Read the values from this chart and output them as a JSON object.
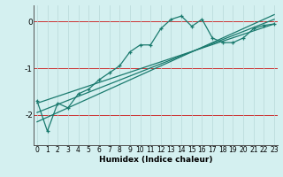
{
  "xlabel": "Humidex (Indice chaleur)",
  "bg_color": "#d4f0f0",
  "line_color": "#1a7a6e",
  "grid_color": "#b8d8d8",
  "red_line_color": "#cc3333",
  "x_data": [
    0,
    1,
    2,
    3,
    4,
    5,
    6,
    7,
    8,
    9,
    10,
    11,
    12,
    13,
    14,
    15,
    16,
    17,
    18,
    19,
    20,
    21,
    22,
    23
  ],
  "y_main": [
    -1.7,
    -2.35,
    -1.75,
    -1.85,
    -1.55,
    -1.45,
    -1.25,
    -1.1,
    -0.95,
    -0.65,
    -0.5,
    -0.5,
    -0.15,
    0.05,
    0.12,
    -0.1,
    0.05,
    -0.35,
    -0.45,
    -0.45,
    -0.35,
    -0.15,
    -0.08,
    -0.05
  ],
  "line1_x": [
    0,
    23
  ],
  "line1_y": [
    -1.75,
    -0.05
  ],
  "line2_x": [
    0,
    23
  ],
  "line2_y": [
    -1.95,
    0.05
  ],
  "line3_x": [
    0,
    23
  ],
  "line3_y": [
    -2.15,
    0.15
  ],
  "ylim": [
    -2.65,
    0.35
  ],
  "xlim": [
    -0.3,
    23.3
  ],
  "yticks": [
    0,
    -1,
    -2
  ],
  "xticks": [
    0,
    1,
    2,
    3,
    4,
    5,
    6,
    7,
    8,
    9,
    10,
    11,
    12,
    13,
    14,
    15,
    16,
    17,
    18,
    19,
    20,
    21,
    22,
    23
  ],
  "xlabel_fontsize": 6.5,
  "tick_fontsize": 5.5,
  "ytick_fontsize": 6.5
}
